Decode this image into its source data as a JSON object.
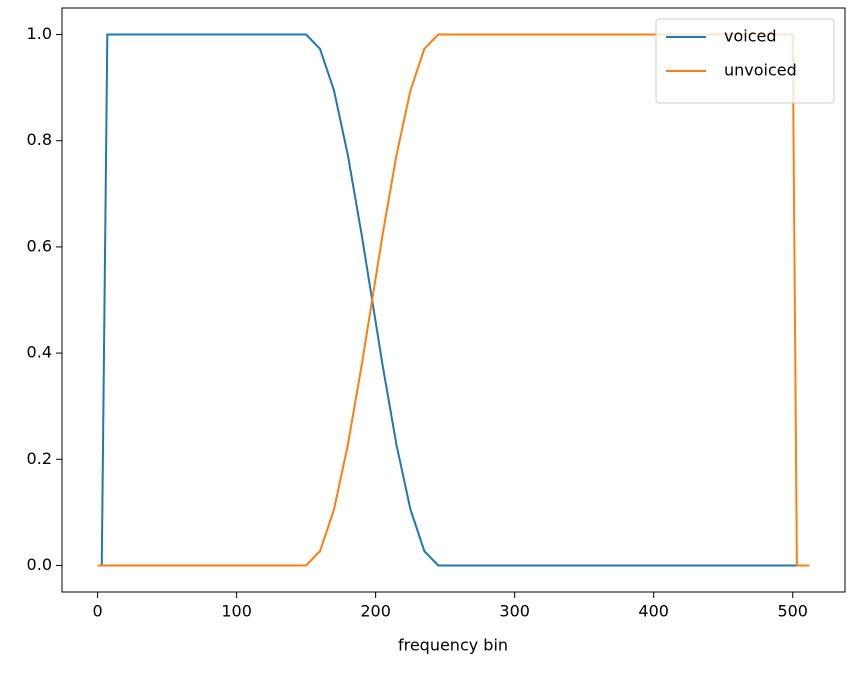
{
  "chart_data": {
    "type": "line",
    "xlabel": "frequency bin",
    "xlim": [
      -25.6,
      537.6
    ],
    "ylim": [
      -0.05,
      1.05
    ],
    "xticks": [
      0,
      100,
      200,
      300,
      400,
      500
    ],
    "yticks": [
      {
        "value": 0,
        "label": "0.0"
      },
      0.2,
      0.4,
      0.6,
      0.8,
      {
        "value": 1,
        "label": "1.0"
      }
    ],
    "legend": "upper right",
    "series": [
      {
        "name": "voiced",
        "color": "#1f77b4",
        "x": [
          0,
          3,
          7,
          150,
          160,
          170,
          180,
          190,
          197.5,
          205,
          215,
          225,
          235,
          245,
          512
        ],
        "values": [
          0,
          0,
          1,
          1,
          0.973,
          0.895,
          0.773,
          0.622,
          0.5,
          0.377,
          0.227,
          0.106,
          0.027,
          0,
          0
        ]
      },
      {
        "name": "unvoiced",
        "color": "#ff7f0e",
        "x": [
          0,
          150,
          160,
          170,
          180,
          190,
          197.5,
          205,
          215,
          225,
          235,
          245,
          500,
          503,
          512
        ],
        "values": [
          0,
          0,
          0.027,
          0.105,
          0.227,
          0.378,
          0.5,
          0.623,
          0.773,
          0.894,
          0.973,
          1,
          1,
          0,
          0
        ]
      }
    ]
  }
}
